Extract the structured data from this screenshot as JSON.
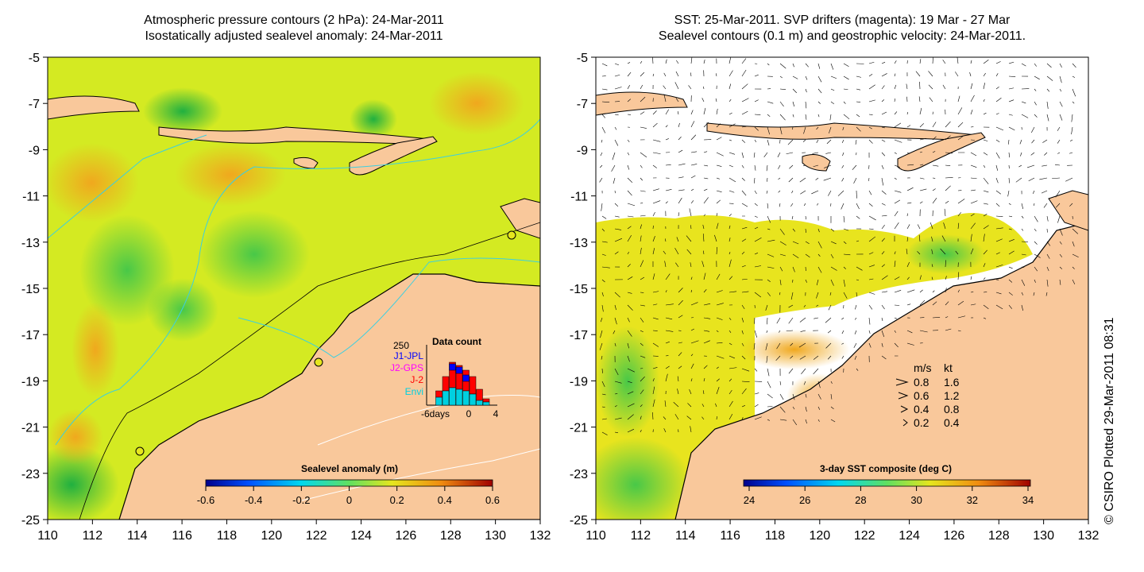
{
  "left_panel": {
    "title_line1": "Atmospheric pressure contours (2 hPa): 24-Mar-2011",
    "title_line2": "Isostatically adjusted sealevel anomaly: 24-Mar-2011",
    "y_ticks": [
      "-5",
      "-7",
      "-9",
      "-11",
      "-13",
      "-15",
      "-17",
      "-19",
      "-21",
      "-23",
      "-25"
    ],
    "x_ticks": [
      "110",
      "112",
      "114",
      "116",
      "118",
      "120",
      "122",
      "124",
      "126",
      "128",
      "130",
      "132"
    ],
    "colorbar": {
      "label": "Sealevel anomaly (m)",
      "ticks": [
        "-0.6",
        "-0.4",
        "-0.2",
        "0",
        "0.2",
        "0.4",
        "0.6"
      ]
    },
    "data_count": {
      "title": "Data count",
      "max_label": "250",
      "legend": [
        {
          "label": "J1-JPL",
          "color": "#0000ff"
        },
        {
          "label": "J2-GPS",
          "color": "#ff00ff"
        },
        {
          "label": "J-2",
          "color": "#ff0000"
        },
        {
          "label": "Envi",
          "color": "#00d0e0"
        }
      ],
      "x_labels": [
        "-6days",
        "0",
        "4"
      ]
    }
  },
  "right_panel": {
    "title_line1": "SST: 25-Mar-2011. SVP drifters (magenta): 19 Mar - 27 Mar",
    "title_line2": "Sealevel contours (0.1 m) and geostrophic velocity: 24-Mar-2011.",
    "y_ticks": [
      "-5",
      "-7",
      "-9",
      "-11",
      "-13",
      "-15",
      "-17",
      "-19",
      "-21",
      "-23",
      "-25"
    ],
    "x_ticks": [
      "110",
      "112",
      "114",
      "116",
      "118",
      "120",
      "122",
      "124",
      "126",
      "128",
      "130",
      "132"
    ],
    "colorbar": {
      "label": "3-day SST composite (deg C)",
      "ticks": [
        "24",
        "26",
        "28",
        "30",
        "32",
        "34"
      ]
    },
    "velocity_legend": {
      "header_ms": "m/s",
      "header_kt": "kt",
      "rows": [
        {
          "ms": "0.8",
          "kt": "1.6"
        },
        {
          "ms": "0.6",
          "kt": "1.2"
        },
        {
          "ms": "0.4",
          "kt": "0.8"
        },
        {
          "ms": "0.2",
          "kt": "0.4"
        }
      ]
    }
  },
  "copyright": "© CSIRO Plotted 29-Mar-2011 08:31",
  "colors": {
    "land": "#f9c89b",
    "anomaly_base": "#d6ea1e",
    "anomaly_green": "#5cd84a",
    "anomaly_orange": "#f2b41e",
    "sst_yellow": "#e6e61e",
    "sst_green": "#5ad24a",
    "sst_orange": "#f2a81e"
  }
}
